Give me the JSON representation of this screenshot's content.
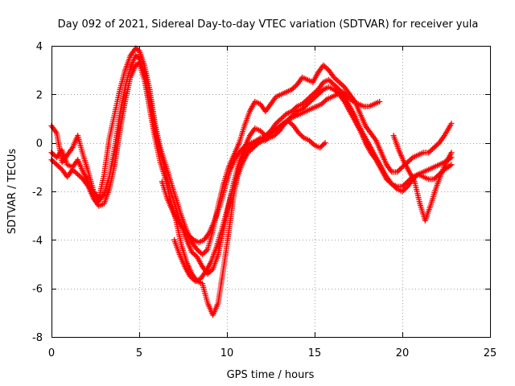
{
  "chart_data": {
    "type": "scatter",
    "title": "Day 092 of 2021, Sidereal Day-to-day VTEC variation (SDTVAR) for receiver yula",
    "xlabel": "GPS time / hours",
    "ylabel": "SDTVAR / TECUs",
    "xlim": [
      0,
      25
    ],
    "ylim": [
      -8,
      4
    ],
    "xticks": [
      0,
      5,
      10,
      15,
      20,
      25
    ],
    "yticks": [
      -8,
      -6,
      -4,
      -2,
      0,
      2,
      4
    ],
    "grid": true,
    "marker": "+",
    "color": "#ff0000",
    "series": [
      {
        "x": [
          0.0,
          0.3,
          0.6,
          0.9,
          1.2,
          1.5,
          1.8,
          2.1,
          2.4,
          2.7,
          3.0,
          3.3,
          3.6,
          3.9,
          4.2,
          4.5,
          4.8,
          5.0,
          5.3,
          5.6,
          5.9,
          6.2,
          6.5,
          6.8,
          7.1,
          7.4,
          7.7,
          8.0,
          8.3,
          8.6,
          8.9,
          9.2,
          9.5,
          9.8,
          10.1,
          10.4,
          10.7,
          11.0,
          11.3,
          11.6,
          11.9,
          12.2,
          12.5,
          12.8,
          13.1,
          13.4,
          13.7,
          14.0,
          14.3,
          14.6,
          14.9,
          15.2,
          15.5,
          15.8,
          16.1,
          16.4,
          16.7,
          17.0,
          17.3,
          17.6,
          17.9,
          18.2,
          18.5,
          18.8,
          19.1,
          19.4,
          19.7,
          20.0,
          20.3,
          20.6,
          20.9,
          21.2,
          21.5,
          21.8,
          22.1,
          22.4,
          22.8
        ],
        "values": [
          0.7,
          0.4,
          -0.8,
          -0.5,
          -0.2,
          0.3,
          -0.5,
          -1.2,
          -2.0,
          -2.3,
          -1.3,
          0.2,
          1.2,
          2.2,
          3.0,
          3.6,
          3.9,
          3.8,
          3.2,
          2.2,
          0.8,
          -0.2,
          -0.9,
          -1.6,
          -2.3,
          -3.0,
          -3.6,
          -4.1,
          -4.4,
          -4.6,
          -4.4,
          -3.6,
          -2.6,
          -1.7,
          -1.0,
          -0.5,
          0.0,
          0.7,
          1.3,
          1.7,
          1.6,
          1.3,
          1.6,
          1.9,
          2.0,
          2.1,
          2.2,
          2.4,
          2.7,
          2.6,
          2.5,
          2.9,
          3.2,
          3.0,
          2.7,
          2.5,
          2.3,
          2.0,
          1.7,
          1.2,
          0.7,
          0.4,
          0.1,
          -0.4,
          -0.9,
          -1.2,
          -1.2,
          -1.0,
          -0.8,
          -0.6,
          -0.5,
          -0.4,
          -0.4,
          -0.2,
          0.0,
          0.3,
          0.8
        ]
      },
      {
        "x": [
          0.0,
          0.3,
          0.6,
          0.9,
          1.2,
          1.5,
          1.8,
          2.1,
          2.4,
          2.7,
          3.0,
          3.3,
          3.6,
          3.9,
          4.2,
          4.5,
          4.8,
          5.0,
          5.3,
          5.6,
          5.9,
          6.2,
          6.5,
          6.8,
          7.1,
          7.4,
          7.7,
          8.0,
          8.3,
          8.6,
          8.9,
          9.2,
          9.5,
          9.8,
          10.1,
          10.4,
          10.7,
          11.0,
          11.3,
          11.6,
          11.9,
          12.2,
          12.5,
          12.8,
          13.1,
          13.4,
          13.7,
          14.0,
          14.3,
          14.6,
          14.9,
          15.2,
          15.5,
          15.8,
          16.1,
          16.4,
          16.7,
          17.0,
          17.3,
          17.6,
          17.9,
          18.2,
          18.5,
          18.8,
          19.1,
          19.4,
          19.7,
          20.0,
          20.3,
          20.6,
          20.9,
          21.2,
          21.5,
          21.8,
          22.1,
          22.4,
          22.8
        ],
        "values": [
          -0.4,
          -0.6,
          -0.3,
          -0.9,
          -1.0,
          -0.7,
          -1.2,
          -1.6,
          -2.2,
          -2.4,
          -2.1,
          -1.4,
          -0.2,
          1.2,
          2.3,
          3.1,
          3.6,
          3.5,
          2.9,
          1.8,
          0.5,
          -0.4,
          -1.2,
          -2.0,
          -2.7,
          -3.4,
          -4.0,
          -4.5,
          -4.7,
          -5.1,
          -5.4,
          -5.2,
          -4.6,
          -3.6,
          -2.6,
          -1.6,
          -0.8,
          -0.2,
          0.3,
          0.6,
          0.5,
          0.3,
          0.5,
          0.8,
          1.0,
          1.2,
          1.3,
          1.5,
          1.6,
          1.8,
          2.0,
          2.2,
          2.5,
          2.6,
          2.4,
          2.2,
          1.9,
          1.5,
          1.1,
          0.6,
          0.2,
          -0.2,
          -0.6,
          -1.0,
          -1.4,
          -1.7,
          -1.9,
          -2.0,
          -1.8,
          -1.5,
          -1.3,
          -1.2,
          -1.1,
          -1.0,
          -0.9,
          -0.8,
          -0.6
        ]
      },
      {
        "x": [
          0.0,
          0.3,
          0.6,
          0.9,
          1.2,
          1.5,
          1.8,
          2.1,
          2.4,
          2.7,
          3.0,
          3.3,
          3.6,
          3.9,
          4.2,
          4.5,
          4.8,
          5.0,
          5.3,
          5.6,
          5.9,
          6.2,
          6.5,
          6.8,
          7.1,
          7.4,
          7.7,
          8.0,
          8.3,
          8.6,
          8.9,
          9.2,
          9.5,
          9.8,
          10.1,
          10.4,
          10.7,
          11.0,
          11.3,
          11.6,
          11.9,
          12.2,
          12.5,
          12.8,
          13.1,
          13.4,
          13.7,
          14.0,
          14.3,
          14.6,
          14.9,
          15.2,
          15.5,
          15.8,
          16.1,
          16.4,
          16.7,
          17.0,
          17.3,
          17.6,
          17.9,
          18.2,
          18.5,
          18.8,
          19.1,
          19.4,
          19.7,
          20.0,
          20.3,
          20.6,
          20.9,
          21.2,
          21.5,
          21.8,
          22.1,
          22.4,
          22.8
        ],
        "values": [
          -0.7,
          -0.9,
          -1.1,
          -1.4,
          -1.1,
          -1.3,
          -1.5,
          -1.8,
          -2.3,
          -2.6,
          -2.5,
          -1.9,
          -0.9,
          0.5,
          1.7,
          2.7,
          3.2,
          3.3,
          2.6,
          1.4,
          0.2,
          -0.8,
          -1.5,
          -2.4,
          -3.2,
          -4.2,
          -4.9,
          -5.4,
          -5.7,
          -5.8,
          -6.6,
          -7.1,
          -6.6,
          -5.2,
          -3.7,
          -2.1,
          -1.0,
          -0.4,
          -0.2,
          0.0,
          0.2,
          0.1,
          0.4,
          0.6,
          0.7,
          0.9,
          1.1,
          1.3,
          1.4,
          1.6,
          1.8,
          2.0,
          2.2,
          2.3,
          2.2,
          2.0,
          1.7,
          1.3,
          0.9,
          0.5,
          0.0,
          -0.4,
          -0.7,
          -1.1,
          -1.5,
          -1.7,
          -1.8,
          -1.8,
          -1.6,
          -1.4,
          -1.3,
          -1.4,
          -1.5,
          -1.5,
          -1.3,
          -1.1,
          -0.9
        ]
      },
      {
        "x": [
          7.0,
          7.3,
          7.6,
          7.9,
          8.2,
          8.5,
          8.8,
          9.1,
          9.4,
          9.7,
          10.0,
          10.3,
          10.6,
          10.9,
          11.2,
          11.5,
          11.8,
          12.1,
          12.4,
          12.7,
          13.0,
          13.3,
          13.6,
          13.9,
          14.2,
          14.5,
          14.8,
          15.1,
          15.4,
          15.7,
          16.0,
          16.3,
          16.6,
          16.9,
          17.2,
          17.5,
          17.8,
          18.1,
          18.4,
          18.7
        ],
        "values": [
          -4.0,
          -4.6,
          -5.1,
          -5.5,
          -5.7,
          -5.6,
          -5.3,
          -4.9,
          -4.3,
          -3.6,
          -2.8,
          -2.0,
          -1.4,
          -0.8,
          -0.4,
          -0.2,
          0.0,
          0.1,
          0.2,
          0.3,
          0.5,
          0.8,
          1.0,
          1.1,
          1.2,
          1.3,
          1.4,
          1.5,
          1.6,
          1.8,
          1.9,
          2.0,
          2.1,
          1.9,
          1.7,
          1.6,
          1.5,
          1.5,
          1.6,
          1.7
        ]
      },
      {
        "x": [
          6.3,
          6.6,
          6.9,
          7.2,
          7.5,
          7.8,
          8.1,
          8.4,
          8.7,
          9.0,
          9.3,
          9.6,
          9.9,
          10.2,
          10.5,
          10.8,
          11.1,
          11.4,
          11.7,
          12.0,
          12.3,
          12.6,
          12.9,
          13.2,
          13.5,
          13.8,
          14.1,
          14.4,
          14.7,
          15.0,
          15.3,
          15.6
        ],
        "values": [
          -1.6,
          -2.3,
          -2.8,
          -3.2,
          -3.5,
          -3.8,
          -4.0,
          -4.1,
          -4.0,
          -3.7,
          -3.2,
          -2.6,
          -1.8,
          -1.1,
          -0.6,
          -0.3,
          -0.1,
          0.0,
          0.1,
          0.2,
          0.3,
          0.5,
          0.6,
          0.8,
          0.9,
          0.7,
          0.4,
          0.2,
          0.1,
          -0.1,
          -0.2,
          0.0
        ]
      },
      {
        "x": [
          19.5,
          19.8,
          20.1,
          20.4,
          20.7,
          21.0,
          21.3,
          21.6,
          21.9,
          22.2,
          22.5,
          22.8
        ],
        "values": [
          0.3,
          -0.3,
          -0.8,
          -1.2,
          -1.6,
          -2.5,
          -3.2,
          -2.6,
          -1.9,
          -1.3,
          -0.8,
          -0.4
        ]
      }
    ]
  }
}
